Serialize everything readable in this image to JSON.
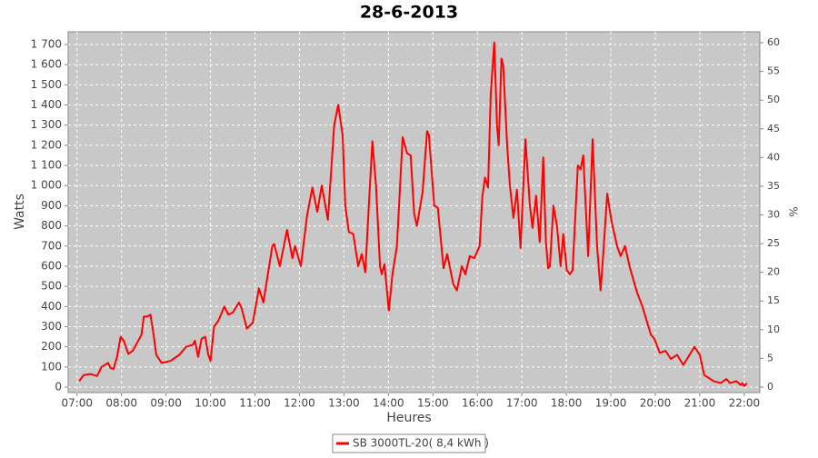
{
  "chart_data": {
    "type": "line",
    "title": "28-6-2013",
    "x_label": "Heures",
    "y_label": "Watts",
    "y2_label": "%",
    "xlim": [
      6.8,
      22.35
    ],
    "xticks": [
      {
        "value": 7,
        "label": "07:00"
      },
      {
        "value": 8,
        "label": "08:00"
      },
      {
        "value": 9,
        "label": "09:00"
      },
      {
        "value": 10,
        "label": "10:00"
      },
      {
        "value": 11,
        "label": "11:00"
      },
      {
        "value": 12,
        "label": "12:00"
      },
      {
        "value": 13,
        "label": "13:00"
      },
      {
        "value": 14,
        "label": "14:00"
      },
      {
        "value": 15,
        "label": "15:00"
      },
      {
        "value": 16,
        "label": "16:00"
      },
      {
        "value": 17,
        "label": "17:00"
      },
      {
        "value": 18,
        "label": "18:00"
      },
      {
        "value": 19,
        "label": "19:00"
      },
      {
        "value": 20,
        "label": "20:00"
      },
      {
        "value": 21,
        "label": "21:00"
      },
      {
        "value": 22,
        "label": "22:00"
      }
    ],
    "ylim": [
      -27,
      1763
    ],
    "yticks": [
      0,
      100,
      200,
      300,
      400,
      500,
      600,
      700,
      800,
      900,
      {
        "value": 1000,
        "label": "1 000"
      },
      {
        "value": 1100,
        "label": "1 100"
      },
      {
        "value": 1200,
        "label": "1 200"
      },
      {
        "value": 1300,
        "label": "1 300"
      },
      {
        "value": 1400,
        "label": "1 400"
      },
      {
        "value": 1500,
        "label": "1 500"
      },
      {
        "value": 1600,
        "label": "1 600"
      },
      {
        "value": 1700,
        "label": "1 700"
      }
    ],
    "y2lim": [
      -0.95,
      61.9
    ],
    "y2ticks": [
      0,
      5,
      10,
      15,
      20,
      25,
      30,
      35,
      40,
      45,
      50,
      55,
      60
    ],
    "grid": true,
    "legend": "bottom",
    "x": [
      7.05,
      7.15,
      7.3,
      7.45,
      7.55,
      7.7,
      7.75,
      7.82,
      7.9,
      7.98,
      8.05,
      8.15,
      8.25,
      8.35,
      8.45,
      8.5,
      8.58,
      8.65,
      8.72,
      8.78,
      8.9,
      9.1,
      9.3,
      9.45,
      9.6,
      9.65,
      9.72,
      9.8,
      9.88,
      9.95,
      10.0,
      10.08,
      10.18,
      10.31,
      10.4,
      10.5,
      10.64,
      10.7,
      10.82,
      10.95,
      11.0,
      11.09,
      11.19,
      11.39,
      11.43,
      11.56,
      11.72,
      11.84,
      11.9,
      12.03,
      12.17,
      12.29,
      12.4,
      12.5,
      12.64,
      12.78,
      12.87,
      12.97,
      13.03,
      13.11,
      13.21,
      13.32,
      13.4,
      13.48,
      13.56,
      13.64,
      13.72,
      13.81,
      13.85,
      13.91,
      14.01,
      14.09,
      14.19,
      14.32,
      14.42,
      14.5,
      14.58,
      14.64,
      14.77,
      14.87,
      14.91,
      15.03,
      15.11,
      15.15,
      15.24,
      15.32,
      15.46,
      15.54,
      15.65,
      15.73,
      15.83,
      15.93,
      16.05,
      16.11,
      16.17,
      16.24,
      16.3,
      16.38,
      16.44,
      16.48,
      16.54,
      16.58,
      16.67,
      16.73,
      16.81,
      16.89,
      16.97,
      17.08,
      17.12,
      17.18,
      17.24,
      17.32,
      17.4,
      17.48,
      17.54,
      17.59,
      17.63,
      17.71,
      17.79,
      17.87,
      17.93,
      18.01,
      18.08,
      18.14,
      18.26,
      18.32,
      18.38,
      18.49,
      18.59,
      18.69,
      18.77,
      18.83,
      18.92,
      18.96,
      19.02,
      19.14,
      19.22,
      19.32,
      19.42,
      19.59,
      19.71,
      19.9,
      19.98,
      20.1,
      20.23,
      20.35,
      20.49,
      20.63,
      20.88,
      21.0,
      21.1,
      21.31,
      21.47,
      21.6,
      21.68,
      21.82,
      21.92,
      21.96,
      22.0,
      22.06
    ],
    "series": [
      {
        "name": "SB 3000TL-20( 8,4 kWh )",
        "color": "#ff0000",
        "values": [
          30,
          60,
          65,
          55,
          100,
          120,
          95,
          90,
          150,
          250,
          230,
          165,
          180,
          220,
          260,
          350,
          350,
          360,
          260,
          160,
          120,
          130,
          160,
          200,
          210,
          230,
          150,
          240,
          250,
          160,
          130,
          300,
          330,
          400,
          360,
          370,
          420,
          390,
          290,
          320,
          380,
          490,
          420,
          700,
          710,
          600,
          780,
          640,
          700,
          600,
          850,
          990,
          870,
          1000,
          830,
          1300,
          1400,
          1250,
          900,
          770,
          760,
          600,
          660,
          570,
          900,
          1220,
          1000,
          600,
          560,
          610,
          380,
          560,
          700,
          1240,
          1160,
          1150,
          860,
          800,
          970,
          1270,
          1250,
          900,
          890,
          800,
          590,
          660,
          510,
          480,
          600,
          560,
          650,
          640,
          700,
          940,
          1040,
          990,
          1450,
          1710,
          1300,
          1200,
          1630,
          1600,
          1200,
          1000,
          840,
          980,
          690,
          1230,
          1100,
          900,
          790,
          950,
          720,
          1140,
          720,
          590,
          600,
          900,
          800,
          600,
          760,
          580,
          560,
          580,
          1100,
          1080,
          1150,
          650,
          1230,
          700,
          480,
          660,
          960,
          900,
          820,
          700,
          650,
          700,
          600,
          470,
          400,
          260,
          240,
          170,
          180,
          140,
          160,
          110,
          200,
          160,
          60,
          30,
          20,
          40,
          20,
          30,
          10,
          20,
          5,
          20
        ]
      }
    ]
  }
}
